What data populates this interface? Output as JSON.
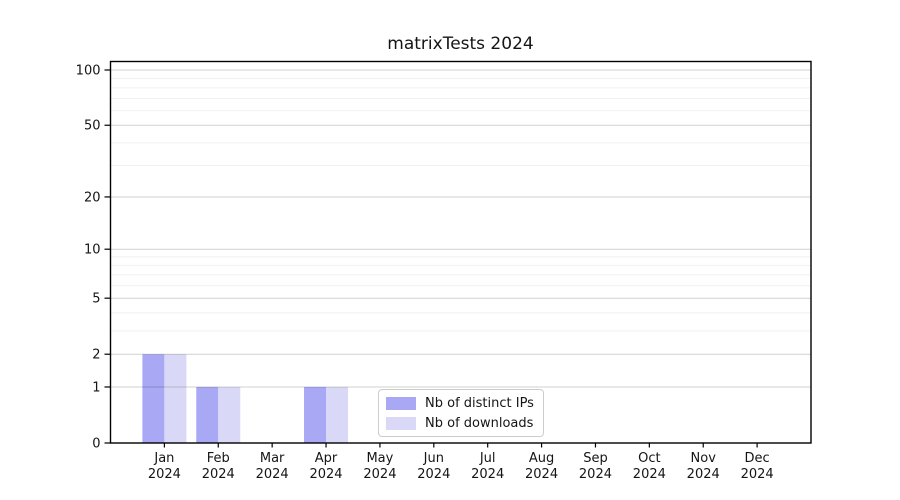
{
  "chart_data": {
    "type": "bar",
    "title": "matrixTests 2024",
    "categories": [
      "Jan",
      "Feb",
      "Mar",
      "Apr",
      "May",
      "Jun",
      "Jul",
      "Aug",
      "Sep",
      "Oct",
      "Nov",
      "Dec"
    ],
    "year": "2024",
    "series": [
      {
        "name": "Nb of distinct IPs",
        "color": "#a8a8f5",
        "values": [
          2,
          1,
          0,
          1,
          0,
          0,
          0,
          0,
          0,
          0,
          0,
          0
        ]
      },
      {
        "name": "Nb of downloads",
        "color": "#d9d9f7",
        "values": [
          2,
          1,
          0,
          1,
          0,
          0,
          0,
          0,
          0,
          0,
          0,
          0
        ]
      }
    ],
    "xlabel": "",
    "ylabel": "",
    "yscale": "log1p",
    "ylim": [
      0,
      113
    ],
    "y_major_ticks": [
      0,
      1,
      2,
      5,
      10,
      20,
      50,
      100
    ],
    "y_minor_gridlines": [
      3,
      4,
      6,
      7,
      8,
      9,
      30,
      40,
      60,
      70,
      80,
      90
    ],
    "grid": "horizontal",
    "legend_position": "lower-center-inside",
    "colors": {
      "axis": "#000000",
      "tick_label": "#151515",
      "grid_major": "rgba(0,0,0,0.18)",
      "grid_minor": "rgba(0,0,0,0.06)"
    }
  }
}
